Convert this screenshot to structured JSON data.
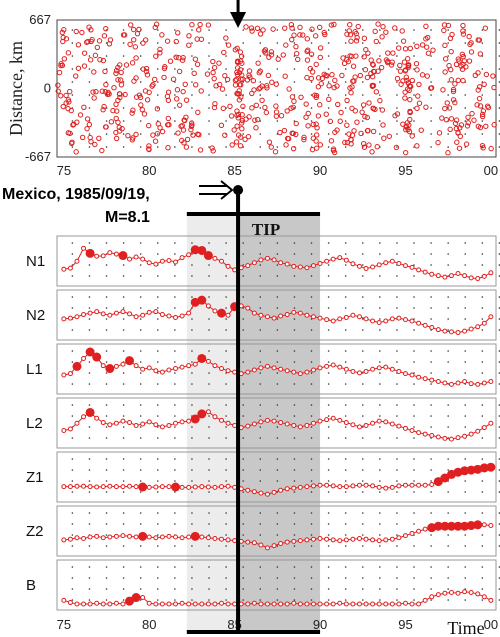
{
  "chart_data": {
    "type": "line",
    "time_axis": {
      "ticks": [
        "75",
        "80",
        "85",
        "90",
        "95",
        "00"
      ],
      "values": [
        1975,
        1980,
        1985,
        1990,
        1995,
        2000
      ],
      "label": "Time",
      "range": [
        1974.6,
        2000.3
      ]
    },
    "scatter_panel": {
      "type": "scatter",
      "ylabel": "Distance, km",
      "yticks": [
        "667",
        "0",
        "-667"
      ],
      "ylim": [
        -667,
        667
      ],
      "note": "randomly distributed earthquake epicenters shown as small open red circles",
      "marker_color": "#e02020"
    },
    "event": {
      "label_line1": "Mexico, 1985/09/19,",
      "label_line2": "M=8.1",
      "time": 1985.2
    },
    "tip": {
      "label": "TIP",
      "start": 1982.2,
      "end": 1990.0
    },
    "series": [
      {
        "name": "N1",
        "values": [
          0.3,
          0.33,
          0.52,
          0.88,
          0.74,
          0.66,
          0.67,
          0.76,
          0.72,
          0.68,
          0.58,
          0.64,
          0.58,
          0.48,
          0.44,
          0.52,
          0.54,
          0.5,
          0.62,
          0.7,
          0.84,
          0.82,
          0.68,
          0.6,
          0.52,
          0.38,
          0.28,
          0.34,
          0.4,
          0.48,
          0.56,
          0.6,
          0.56,
          0.48,
          0.44,
          0.38,
          0.36,
          0.34,
          0.4,
          0.46,
          0.52,
          0.58,
          0.62,
          0.55,
          0.45,
          0.38,
          0.32,
          0.36,
          0.42,
          0.48,
          0.52,
          0.46,
          0.4,
          0.35,
          0.28,
          0.22,
          0.16,
          0.12,
          0.08,
          0.12,
          0.18,
          0.12,
          0.06,
          0.04,
          0.1,
          0.2
        ],
        "big_idx": [
          4,
          9,
          20,
          21,
          22
        ]
      },
      {
        "name": "N2",
        "values": [
          0.42,
          0.44,
          0.48,
          0.54,
          0.58,
          0.62,
          0.56,
          0.52,
          0.58,
          0.62,
          0.56,
          0.48,
          0.52,
          0.6,
          0.62,
          0.54,
          0.5,
          0.46,
          0.5,
          0.58,
          0.88,
          0.94,
          0.78,
          0.64,
          0.58,
          0.52,
          0.76,
          0.78,
          0.72,
          0.58,
          0.52,
          0.48,
          0.44,
          0.5,
          0.54,
          0.6,
          0.58,
          0.52,
          0.48,
          0.44,
          0.4,
          0.36,
          0.42,
          0.46,
          0.52,
          0.48,
          0.42,
          0.36,
          0.32,
          0.36,
          0.42,
          0.44,
          0.4,
          0.36,
          0.3,
          0.24,
          0.18,
          0.12,
          0.08,
          0.06,
          0.04,
          0.08,
          0.14,
          0.2,
          0.3,
          0.48
        ],
        "big_idx": [
          20,
          21,
          24,
          26
        ]
      },
      {
        "name": "L1",
        "values": [
          0.36,
          0.4,
          0.6,
          0.82,
          1.0,
          0.86,
          0.62,
          0.54,
          0.6,
          0.66,
          0.76,
          0.62,
          0.52,
          0.56,
          0.48,
          0.44,
          0.5,
          0.54,
          0.58,
          0.62,
          0.66,
          0.82,
          0.74,
          0.62,
          0.54,
          0.48,
          0.44,
          0.4,
          0.44,
          0.5,
          0.56,
          0.6,
          0.56,
          0.52,
          0.48,
          0.44,
          0.4,
          0.44,
          0.5,
          0.56,
          0.6,
          0.64,
          0.58,
          0.52,
          0.46,
          0.42,
          0.46,
          0.52,
          0.56,
          0.58,
          0.52,
          0.46,
          0.4,
          0.36,
          0.3,
          0.26,
          0.22,
          0.18,
          0.14,
          0.1,
          0.14,
          0.18,
          0.12,
          0.1,
          0.14,
          0.18
        ],
        "big_idx": [
          2,
          4,
          5,
          7,
          10,
          21
        ]
      },
      {
        "name": "L2",
        "values": [
          0.32,
          0.36,
          0.52,
          0.7,
          0.82,
          0.66,
          0.54,
          0.48,
          0.52,
          0.58,
          0.54,
          0.46,
          0.5,
          0.56,
          0.48,
          0.42,
          0.46,
          0.52,
          0.56,
          0.58,
          0.64,
          0.78,
          0.84,
          0.7,
          0.6,
          0.52,
          0.46,
          0.4,
          0.44,
          0.5,
          0.56,
          0.6,
          0.58,
          0.54,
          0.5,
          0.46,
          0.42,
          0.46,
          0.52,
          0.58,
          0.62,
          0.66,
          0.6,
          0.54,
          0.48,
          0.42,
          0.46,
          0.52,
          0.58,
          0.56,
          0.5,
          0.44,
          0.38,
          0.32,
          0.26,
          0.22,
          0.18,
          0.14,
          0.1,
          0.08,
          0.12,
          0.16,
          0.22,
          0.3,
          0.4,
          0.52
        ],
        "big_idx": [
          4,
          20,
          21
        ]
      },
      {
        "name": "Z1",
        "values": [
          0.26,
          0.26,
          0.27,
          0.27,
          0.26,
          0.25,
          0.26,
          0.27,
          0.26,
          0.26,
          0.27,
          0.26,
          0.25,
          0.24,
          0.25,
          0.26,
          0.26,
          0.25,
          0.24,
          0.24,
          0.25,
          0.26,
          0.25,
          0.24,
          0.26,
          0.27,
          0.24,
          0.2,
          0.16,
          0.12,
          0.08,
          0.05,
          0.1,
          0.16,
          0.2,
          0.22,
          0.24,
          0.26,
          0.28,
          0.3,
          0.3,
          0.28,
          0.26,
          0.26,
          0.28,
          0.3,
          0.3,
          0.28,
          0.24,
          0.22,
          0.24,
          0.28,
          0.3,
          0.3,
          0.3,
          0.3,
          0.32,
          0.4,
          0.5,
          0.6,
          0.66,
          0.7,
          0.72,
          0.74,
          0.78,
          0.8
        ],
        "big_idx": [
          12,
          17,
          57,
          58,
          59,
          60,
          61,
          62,
          63,
          64,
          65
        ]
      },
      {
        "name": "Z2",
        "values": [
          0.28,
          0.3,
          0.34,
          0.32,
          0.36,
          0.38,
          0.34,
          0.36,
          0.38,
          0.4,
          0.38,
          0.36,
          0.38,
          0.36,
          0.34,
          0.36,
          0.38,
          0.36,
          0.34,
          0.36,
          0.38,
          0.36,
          0.34,
          0.32,
          0.3,
          0.28,
          0.26,
          0.24,
          0.22,
          0.2,
          0.14,
          0.06,
          0.12,
          0.18,
          0.22,
          0.24,
          0.26,
          0.28,
          0.3,
          0.32,
          0.3,
          0.28,
          0.26,
          0.28,
          0.3,
          0.32,
          0.3,
          0.28,
          0.26,
          0.28,
          0.3,
          0.34,
          0.4,
          0.46,
          0.52,
          0.58,
          0.62,
          0.66,
          0.66,
          0.66,
          0.66,
          0.66,
          0.68,
          0.7,
          0.7,
          0.68
        ],
        "big_idx": [
          12,
          20,
          56,
          57,
          58,
          59,
          60,
          61,
          62,
          63
        ]
      },
      {
        "name": "B",
        "values": [
          0.1,
          0.04,
          0.0,
          0.0,
          0.0,
          0.02,
          0.0,
          0.0,
          0.02,
          0.0,
          0.08,
          0.18,
          0.18,
          0.02,
          0.0,
          0.0,
          0.0,
          0.0,
          0.02,
          0.0,
          0.0,
          0.0,
          0.0,
          0.0,
          0.02,
          0.0,
          0.0,
          0.0,
          0.0,
          0.02,
          0.0,
          0.0,
          0.0,
          0.0,
          0.0,
          0.02,
          0.0,
          0.0,
          0.0,
          0.0,
          0.0,
          0.0,
          0.02,
          0.0,
          0.0,
          0.0,
          0.0,
          0.0,
          0.0,
          0.0,
          0.0,
          0.0,
          0.02,
          0.0,
          0.0,
          0.1,
          0.2,
          0.26,
          0.3,
          0.32,
          0.3,
          0.34,
          0.32,
          0.28,
          0.2,
          0.1
        ],
        "big_idx": [
          10,
          11
        ]
      }
    ]
  }
}
